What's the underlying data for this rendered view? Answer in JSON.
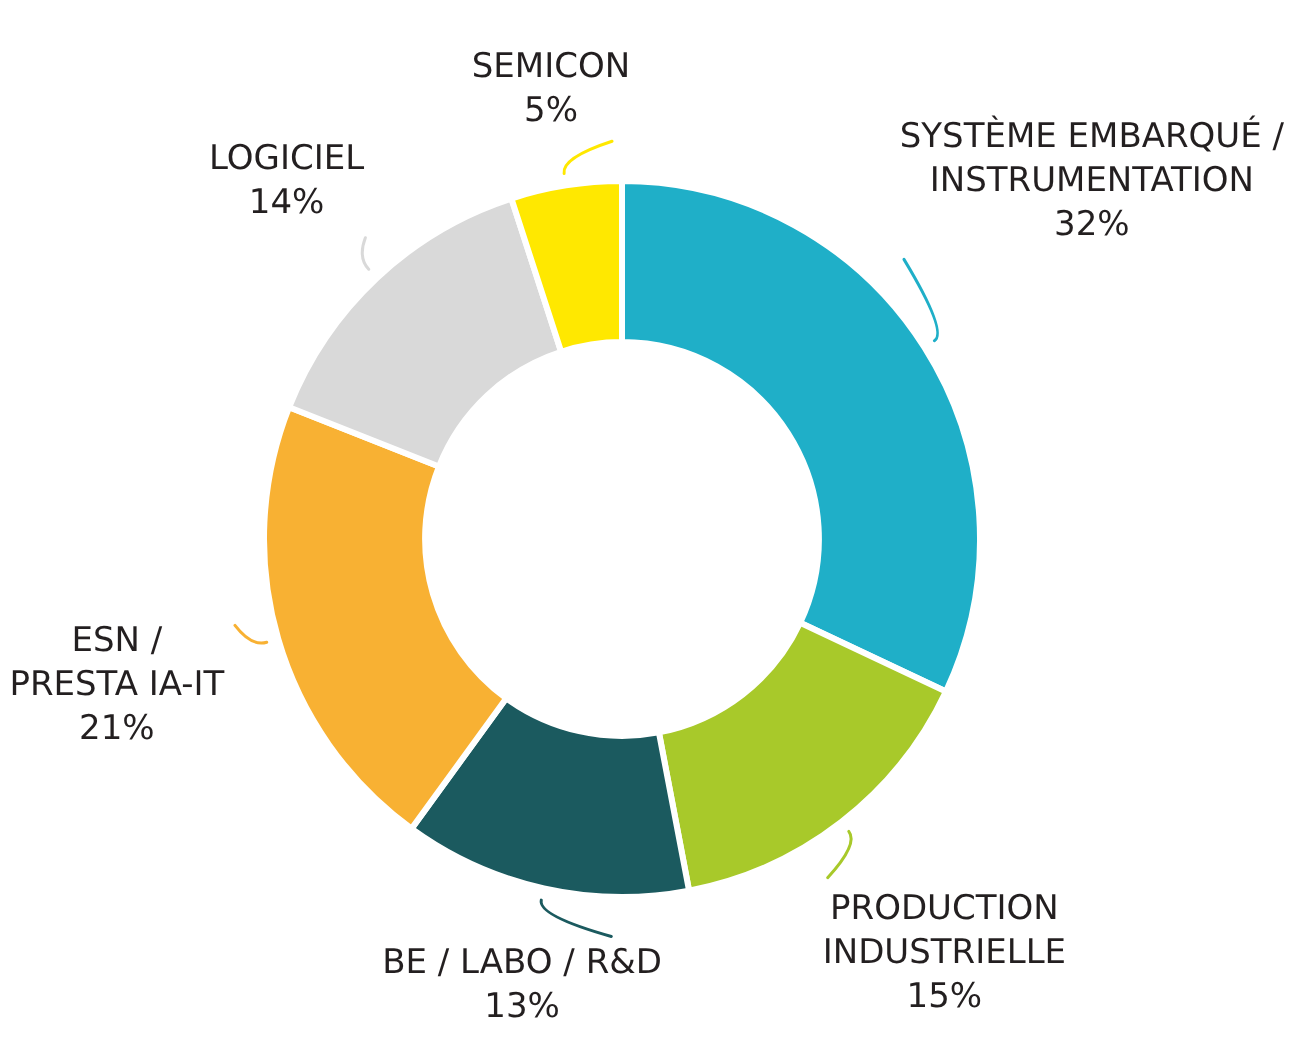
{
  "chart_data": {
    "type": "donut",
    "categories": [
      "SYSTÈME EMBARQUÉ /\nINSTRUMENTATION",
      "PRODUCTION\nINDUSTRIELLE",
      "BE / LABO / R&D",
      "ESN /\nPRESTA IA-IT",
      "LOGICIEL",
      "SEMICON"
    ],
    "values": [
      32,
      15,
      13,
      21,
      14,
      5
    ],
    "colors": [
      "#1fafc8",
      "#a8c92a",
      "#1b5a5f",
      "#f8b133",
      "#d9d9d9",
      "#ffe800"
    ],
    "value_labels": [
      "32%",
      "15%",
      "13%",
      "21%",
      "14%",
      "5%"
    ],
    "legend": false
  }
}
